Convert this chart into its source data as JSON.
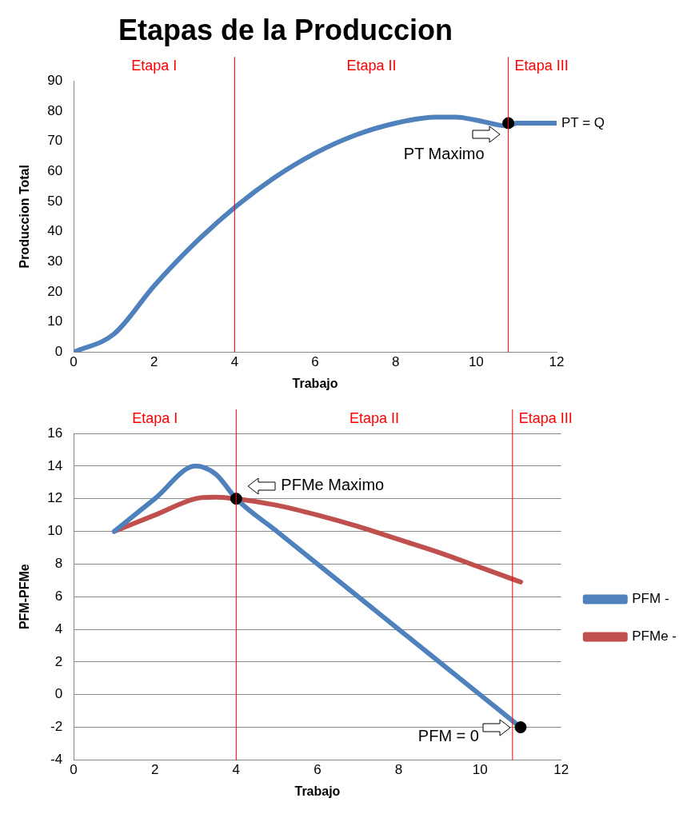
{
  "chart_data": [
    {
      "type": "line",
      "title": "Etapas de la Produccion",
      "xlabel": "Trabajo",
      "ylabel": "Produccion Total",
      "xlim": [
        0,
        12
      ],
      "xticks": [
        0,
        2,
        4,
        6,
        8,
        10,
        12
      ],
      "ylim": [
        0,
        90
      ],
      "yticks": [
        0,
        10,
        20,
        30,
        40,
        50,
        60,
        70,
        80,
        90
      ],
      "grid": false,
      "legend": false,
      "marker": "none",
      "line_style": "solid",
      "series": [
        {
          "name": "PT = Q",
          "color": "#4f81bd",
          "x": [
            0,
            1,
            2,
            3,
            4,
            5,
            6,
            7,
            8,
            9,
            9.5,
            10,
            10.8,
            11,
            12
          ],
          "values": [
            0,
            6,
            22,
            36,
            48,
            58,
            66,
            72,
            76,
            78,
            78,
            77,
            75,
            76,
            76
          ]
        },
        {
          "type": "scatter",
          "marker": "circle",
          "color": "#000000",
          "x": [
            10.8
          ],
          "values": [
            76
          ]
        }
      ],
      "ref_lines": [
        {
          "axis": "x",
          "value": 4,
          "color": "#ff0000"
        },
        {
          "axis": "x",
          "value": 10.8,
          "color": "#ff0000"
        }
      ],
      "annotations": [
        "Etapa I",
        "Etapa II",
        "Etapa III",
        {
          "text": "PT Maximo",
          "x": 10.8,
          "y": 76
        }
      ]
    },
    {
      "type": "line",
      "xlabel": "Trabajo",
      "ylabel": "PFM-PFMe",
      "xlim": [
        0,
        12
      ],
      "xticks": [
        0,
        2,
        4,
        6,
        8,
        10,
        12
      ],
      "ylim": [
        -4,
        16
      ],
      "yticks": [
        -4,
        -2,
        0,
        2,
        4,
        6,
        8,
        10,
        12,
        14,
        16
      ],
      "grid": "y",
      "legend": "right",
      "marker": "none",
      "line_style": "solid",
      "series": [
        {
          "name": "PFM -",
          "color": "#4f81bd",
          "x": [
            1,
            2,
            3,
            3.5,
            4,
            5,
            6,
            7,
            8,
            9,
            10,
            11
          ],
          "values": [
            10,
            12,
            14,
            13.5,
            12,
            10,
            8,
            6,
            4,
            2,
            0,
            -2
          ]
        },
        {
          "name": "PFMe -",
          "color": "#c0504d",
          "x": [
            1,
            2,
            3,
            3.5,
            4,
            5,
            6,
            7,
            8,
            9,
            10,
            11
          ],
          "values": [
            10,
            11,
            12,
            12.1,
            12,
            11.6,
            11,
            10.3,
            9.5,
            8.7,
            7.8,
            6.9
          ]
        },
        {
          "type": "scatter",
          "marker": "circle",
          "color": "#000000",
          "x": [
            4,
            11
          ],
          "values": [
            12,
            -2
          ]
        }
      ],
      "ref_lines": [
        {
          "axis": "x",
          "value": 4,
          "color": "#ff0000"
        },
        {
          "axis": "x",
          "value": 10.8,
          "color": "#ff0000"
        }
      ],
      "annotations": [
        "Etapa I",
        "Etapa II",
        "Etapa III",
        {
          "text": "PFMe Maximo",
          "x": 4,
          "y": 12
        },
        {
          "text": "PFM = 0",
          "x": 11,
          "y": -2
        }
      ]
    }
  ]
}
